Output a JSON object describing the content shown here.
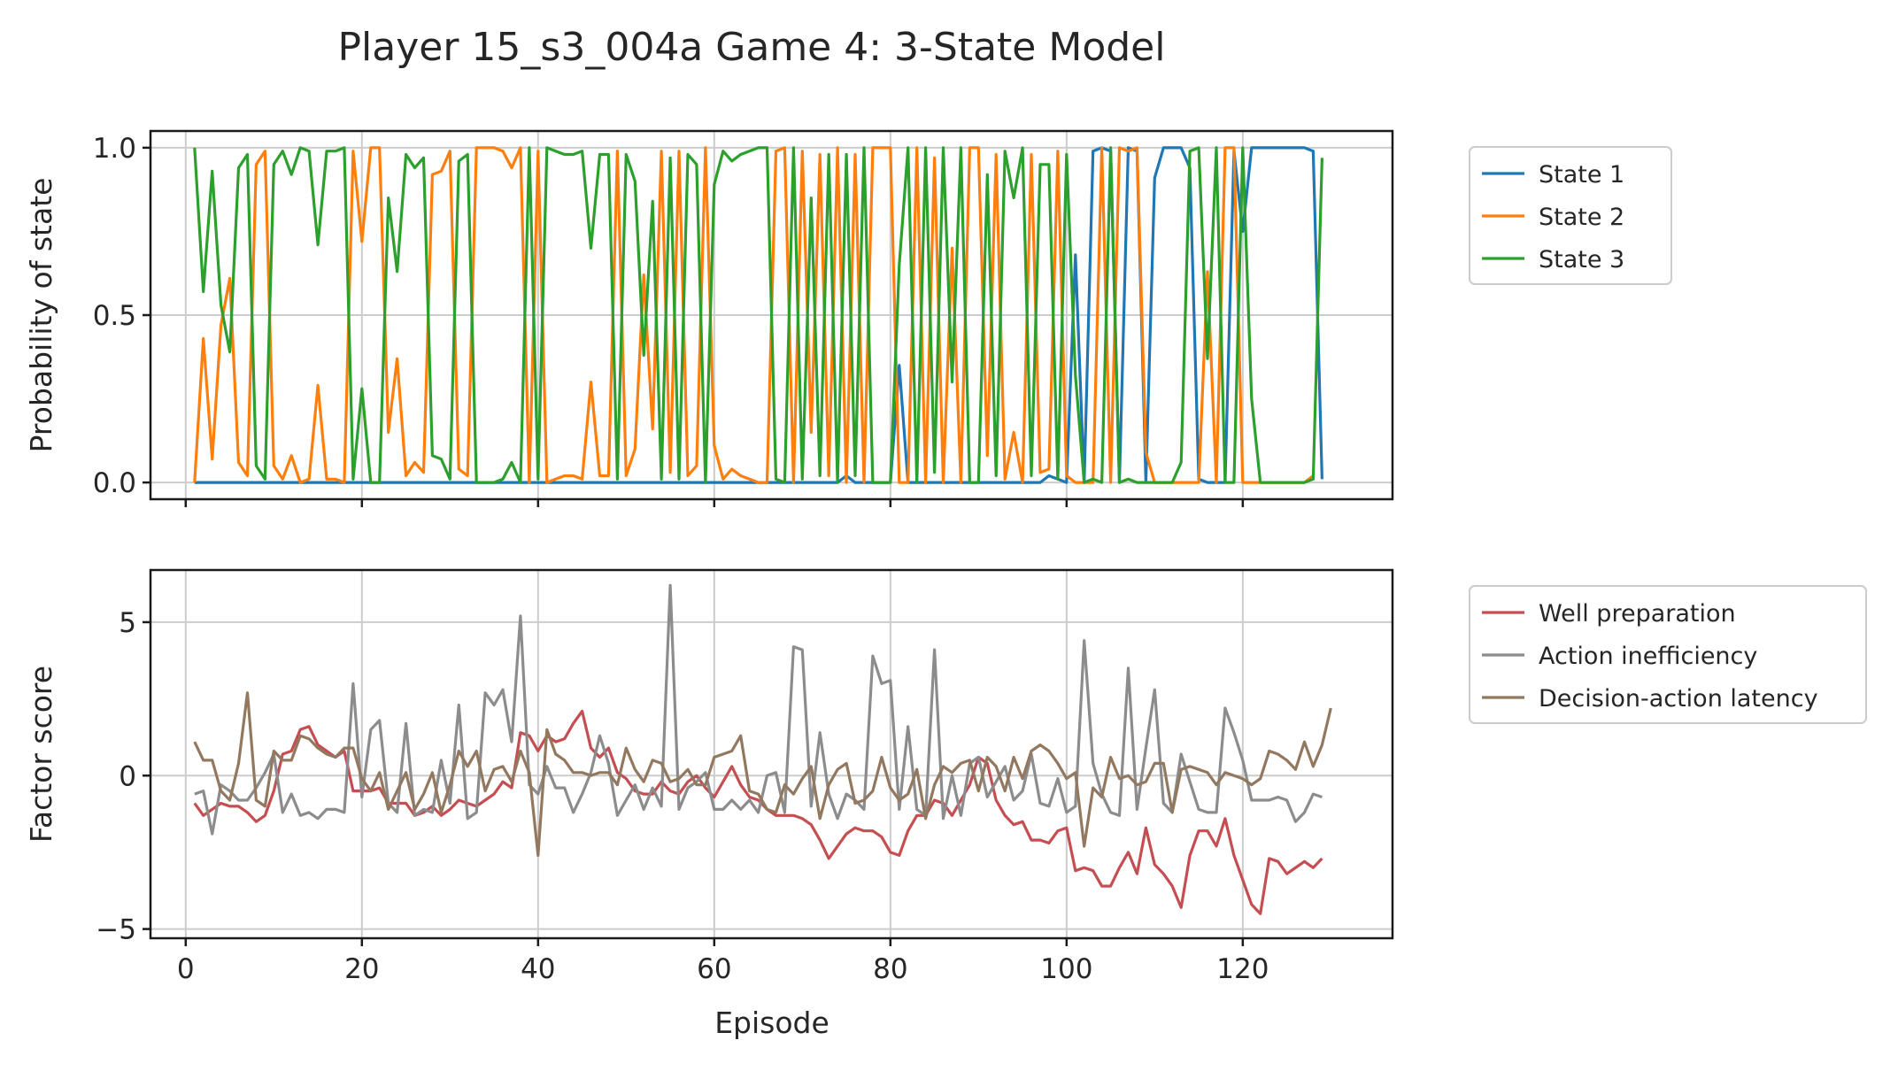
{
  "chart_data": {
    "title": "Player 15_s3_004a Game 4: 3-State Model",
    "xlabel": "Episode",
    "xlim": [
      -4,
      137
    ],
    "xticks": [
      0,
      20,
      40,
      60,
      80,
      100,
      120
    ],
    "x_start": 1,
    "panels": [
      {
        "type": "line",
        "ylabel": "Probability of state",
        "ylim": [
          -0.05,
          1.05
        ],
        "yticks": [
          {
            "v": 0,
            "label": "0.0"
          },
          {
            "v": 0.5,
            "label": "0.5"
          },
          {
            "v": 1,
            "label": "1.0"
          }
        ],
        "grid": true,
        "legend_position": "outside-right",
        "series": [
          {
            "name": "State 1",
            "color": "#1f77b4",
            "values": [
              0,
              0,
              0,
              0,
              0,
              0,
              0,
              0,
              0,
              0,
              0,
              0,
              0,
              0,
              0,
              0,
              0,
              0,
              0,
              0,
              0,
              0,
              0,
              0,
              0,
              0,
              0,
              0,
              0,
              0,
              0,
              0,
              0,
              0,
              0,
              0,
              0,
              0,
              0,
              0,
              0,
              0,
              0,
              0,
              0,
              0,
              0,
              0,
              0,
              0,
              0,
              0,
              0,
              0,
              0,
              0,
              0,
              0,
              0,
              0,
              0,
              0,
              0,
              0,
              0,
              0,
              0,
              0,
              0,
              0,
              0,
              0,
              0,
              0,
              0.02,
              0,
              0,
              0,
              0,
              0,
              0.35,
              0,
              0,
              0,
              0,
              0,
              0,
              0,
              0,
              0,
              0,
              0,
              0,
              0,
              0,
              0,
              0,
              0.02,
              0.01,
              0,
              0.68,
              0,
              0.99,
              1,
              0.99,
              0,
              1,
              0.99,
              0,
              0.91,
              1,
              1,
              1,
              0.94,
              0.01,
              0,
              0,
              0,
              0.99,
              0.75,
              1,
              1,
              1,
              1,
              1,
              1,
              1,
              0.99,
              0.01
            ]
          },
          {
            "name": "State 2",
            "color": "#ff7f0e",
            "values": [
              0,
              0.43,
              0.07,
              0.47,
              0.61,
              0.06,
              0.02,
              0.95,
              0.99,
              0.05,
              0.01,
              0.08,
              0,
              0.01,
              0.29,
              0.01,
              0.01,
              0,
              0.99,
              0.72,
              1,
              1,
              0.15,
              0.37,
              0.02,
              0.06,
              0.03,
              0.92,
              0.93,
              0.99,
              0.04,
              0.02,
              1,
              1,
              1,
              0.99,
              0.94,
              1,
              0,
              0.99,
              0,
              0.01,
              0.02,
              0.02,
              0.01,
              0.3,
              0.02,
              0.02,
              0.99,
              0.02,
              0.1,
              0.62,
              0.16,
              0.99,
              0.03,
              0.99,
              0.02,
              0.05,
              1,
              0.11,
              0.01,
              0.04,
              0.02,
              0.01,
              0,
              0,
              0.99,
              1,
              0,
              0.99,
              0.15,
              0.98,
              0.02,
              1,
              0,
              0.98,
              0,
              1,
              1,
              1,
              0,
              0,
              1,
              0,
              0.97,
              0,
              0.7,
              0,
              1,
              1,
              0.08,
              0.98,
              0.01,
              0.15,
              0,
              0.98,
              0.03,
              0.04,
              0.99,
              0.02,
              0,
              0,
              0,
              1,
              0,
              1,
              0.99,
              1,
              0.09,
              0,
              0,
              0,
              0,
              0,
              0,
              0.63,
              0,
              1,
              1,
              0,
              0,
              0,
              0,
              0,
              0,
              0,
              0,
              0.02
            ]
          },
          {
            "name": "State 3",
            "color": "#2ca02c",
            "values": [
              1,
              0.57,
              0.93,
              0.53,
              0.39,
              0.94,
              0.98,
              0.05,
              0.01,
              0.95,
              0.99,
              0.92,
              1,
              0.99,
              0.71,
              0.99,
              0.99,
              1,
              0.01,
              0.28,
              0,
              0,
              0.85,
              0.63,
              0.98,
              0.94,
              0.97,
              0.08,
              0.07,
              0.01,
              0.96,
              0.98,
              0,
              0,
              0,
              0.01,
              0.06,
              0,
              1,
              0.01,
              1,
              0.99,
              0.98,
              0.98,
              0.99,
              0.7,
              0.98,
              0.98,
              0.01,
              0.98,
              0.9,
              0.38,
              0.84,
              0.01,
              0.97,
              0.01,
              0.98,
              0.95,
              0,
              0.89,
              0.99,
              0.96,
              0.98,
              0.99,
              1,
              1,
              0.01,
              0,
              1,
              0.01,
              0.85,
              0.02,
              0.98,
              0,
              0.98,
              0.02,
              1,
              0,
              0,
              0,
              0.65,
              1,
              0,
              1,
              0.03,
              1,
              0.3,
              1,
              0,
              0,
              0.92,
              0.02,
              0.99,
              0.85,
              1,
              0.02,
              0.95,
              0.95,
              0.01,
              0.98,
              0.32,
              0,
              0.01,
              0,
              1,
              0,
              0.01,
              0,
              0,
              0,
              0,
              0,
              0.06,
              0.99,
              1,
              0.37,
              1,
              0,
              0,
              1,
              0.25,
              0,
              0,
              0,
              0,
              0,
              0,
              0.01,
              0.97
            ]
          }
        ]
      },
      {
        "type": "line",
        "ylabel": "Factor score",
        "ylim": [
          -5.3,
          6.7
        ],
        "yticks": [
          {
            "v": -5,
            "label": "−5"
          },
          {
            "v": 0,
            "label": "0"
          },
          {
            "v": 5,
            "label": "5"
          }
        ],
        "grid": true,
        "legend_position": "outside-right",
        "series": [
          {
            "name": "Well preparation",
            "color": "#c44e52",
            "values": [
              -0.9,
              -1.3,
              -1.1,
              -0.9,
              -1.0,
              -1.0,
              -1.2,
              -1.5,
              -1.3,
              -0.5,
              0.7,
              0.8,
              1.5,
              1.6,
              1.0,
              0.8,
              0.6,
              0.8,
              -0.5,
              -0.5,
              -0.5,
              -0.4,
              -0.9,
              -0.9,
              -0.9,
              -1.3,
              -1.2,
              -1.0,
              -1.3,
              -1.1,
              -0.8,
              -0.9,
              -1.0,
              -0.8,
              -0.6,
              -0.2,
              -0.4,
              1.4,
              1.3,
              0.8,
              1.3,
              1.1,
              1.2,
              1.7,
              2.1,
              0.9,
              0.6,
              0.9,
              0.1,
              -0.1,
              -0.5,
              -0.6,
              -0.6,
              -0.2,
              -0.5,
              -0.6,
              -0.2,
              0.0,
              -0.4,
              -0.7,
              -0.2,
              0.3,
              -0.3,
              -0.7,
              -0.8,
              -1.1,
              -1.3,
              -1.3,
              -1.3,
              -1.4,
              -1.6,
              -2.1,
              -2.7,
              -2.3,
              -1.9,
              -1.7,
              -1.8,
              -1.8,
              -2.0,
              -2.5,
              -2.6,
              -1.8,
              -1.3,
              -1.3,
              -0.8,
              -0.9,
              -1.3,
              -0.8,
              -0.3,
              0.6,
              0.4,
              -0.8,
              -1.3,
              -1.6,
              -1.5,
              -2.1,
              -2.1,
              -2.2,
              -1.8,
              -1.7,
              -3.1,
              -3.0,
              -3.1,
              -3.6,
              -3.6,
              -3.0,
              -2.5,
              -3.2,
              -1.7,
              -2.9,
              -3.2,
              -3.6,
              -4.3,
              -2.6,
              -1.8,
              -1.8,
              -2.3,
              -1.4,
              -2.6,
              -3.4,
              -4.2,
              -4.5,
              -2.7,
              -2.8,
              -3.2,
              -3.0,
              -2.8,
              -3.0,
              -2.7
            ]
          },
          {
            "name": "Action inefficiency",
            "color": "#8c8c8c",
            "values": [
              -0.6,
              -0.5,
              -1.9,
              -0.3,
              -0.5,
              -0.8,
              -0.8,
              -0.4,
              0.1,
              0.7,
              -1.2,
              -0.6,
              -1.3,
              -1.2,
              -1.4,
              -1.1,
              -1.1,
              -1.2,
              3.0,
              -0.7,
              1.5,
              1.8,
              -0.9,
              -1.2,
              1.7,
              -1.3,
              -1.1,
              -1.2,
              0.5,
              -0.9,
              2.3,
              -1.4,
              -1.2,
              2.7,
              2.3,
              2.8,
              1.1,
              5.2,
              -0.3,
              -0.6,
              0.3,
              -0.4,
              -0.4,
              -1.2,
              -0.6,
              0.1,
              1.3,
              0.4,
              -1.3,
              -0.8,
              -0.3,
              -1.1,
              -0.4,
              -1.0,
              6.2,
              -1.1,
              -0.4,
              -0.2,
              0.1,
              -1.1,
              -1.1,
              -0.8,
              -1.1,
              -0.8,
              -1.2,
              0.0,
              0.1,
              -1.2,
              4.2,
              4.1,
              -1.0,
              1.4,
              -0.6,
              -1.4,
              -0.6,
              -0.8,
              -1.1,
              3.9,
              3.0,
              3.1,
              -1.1,
              1.6,
              -1.1,
              -1.3,
              4.1,
              -1.4,
              0.0,
              -1.3,
              0.4,
              0.6,
              -0.7,
              -0.2,
              0.3,
              -0.8,
              -0.5,
              0.7,
              -0.9,
              -1.0,
              -0.1,
              -1.2,
              -1.0,
              4.4,
              0.4,
              -0.6,
              -1.2,
              -1.3,
              3.5,
              -1.1,
              0.9,
              2.8,
              -0.9,
              -1.2,
              0.7,
              -0.2,
              -1.1,
              -1.2,
              -1.2,
              2.2,
              1.4,
              0.5,
              -0.8,
              -0.8,
              -0.8,
              -0.7,
              -0.8,
              -1.5,
              -1.2,
              -0.6,
              -0.7
            ]
          },
          {
            "name": "Decision-action latency",
            "color": "#937860",
            "values": [
              1.1,
              0.5,
              0.5,
              -0.5,
              -0.8,
              0.4,
              2.7,
              -0.8,
              -1.0,
              0.8,
              0.5,
              0.5,
              1.3,
              1.2,
              0.9,
              0.7,
              0.6,
              0.9,
              0.9,
              -0.1,
              -0.5,
              0.1,
              -1.1,
              -0.5,
              0.1,
              -1.1,
              -0.6,
              0.1,
              -1.2,
              -0.3,
              0.8,
              0.3,
              0.8,
              -0.5,
              0.2,
              0.3,
              -0.2,
              0.8,
              0.1,
              -2.6,
              1.5,
              0.7,
              0.5,
              0.1,
              0.1,
              0.0,
              0.1,
              0.1,
              -0.3,
              0.9,
              0.2,
              -0.2,
              0.5,
              0.4,
              -0.2,
              -0.1,
              0.2,
              -0.3,
              -0.3,
              0.6,
              0.7,
              0.8,
              1.3,
              -0.5,
              -0.6,
              -1.1,
              -1.2,
              -0.3,
              -0.6,
              -0.1,
              0.3,
              -1.4,
              -0.3,
              0.2,
              0.4,
              -0.9,
              -0.8,
              -0.5,
              0.6,
              -0.4,
              -0.8,
              -0.6,
              0.2,
              -1.4,
              -0.3,
              0.3,
              0.1,
              0.4,
              0.5,
              -0.5,
              0.6,
              0.3,
              -0.5,
              0.6,
              -0.1,
              0.8,
              1.0,
              0.8,
              0.4,
              -0.1,
              0.1,
              -2.3,
              -0.4,
              -0.7,
              0.6,
              -0.1,
              0.0,
              -0.3,
              -0.2,
              0.4,
              0.4,
              -1.2,
              0.2,
              0.3,
              0.2,
              0.1,
              -0.3,
              0.1,
              0.0,
              -0.1,
              -0.3,
              -0.1,
              0.8,
              0.7,
              0.5,
              0.2,
              1.1,
              0.3,
              1.0,
              2.2
            ]
          }
        ]
      }
    ]
  }
}
